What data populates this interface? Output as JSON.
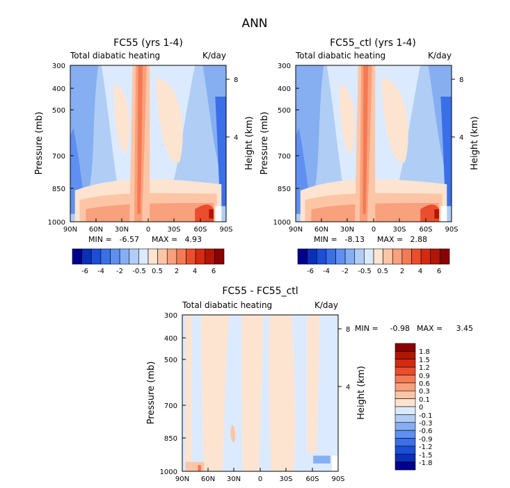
{
  "figure": {
    "title": "ANN"
  },
  "chart_data": [
    {
      "type": "heatmap",
      "title": "FC55 (yrs 1-4)",
      "subtitle_left": "Total diabatic heating",
      "subtitle_right": "K/day",
      "ylabel": "Pressure (mb)",
      "ylabel_right": "Height (km)",
      "xticks": [
        "90N",
        "60N",
        "30N",
        "0",
        "30S",
        "60S",
        "90S"
      ],
      "yticks": [
        "300",
        "400",
        "500",
        "700",
        "850",
        "1000"
      ],
      "yticks_right": [
        "8",
        "4"
      ],
      "ylim": [
        1000,
        300
      ],
      "y_scale": "log-pressure",
      "min_label": "MIN =",
      "min_value": "-6.57",
      "max_label": "MAX =",
      "max_value": "4.93",
      "colorbar": {
        "orientation": "horizontal",
        "labels": [
          "-6",
          "-4",
          "-2",
          "-0.5",
          "0.5",
          "2",
          "4",
          "6"
        ],
        "colors": [
          "#00008f",
          "#0a2fb8",
          "#1a4fd6",
          "#3a6fe8",
          "#5f8ff0",
          "#86aff2",
          "#b0cdf5",
          "#dceaff",
          "#fde4d0",
          "#fcc6a6",
          "#f9a07c",
          "#f47a54",
          "#ea4e2e",
          "#d52a12",
          "#b01606",
          "#8b0000"
        ]
      }
    },
    {
      "type": "heatmap",
      "title": "FC55_ctl (yrs 1-4)",
      "subtitle_left": "Total diabatic heating",
      "subtitle_right": "K/day",
      "ylabel": "Pressure (mb)",
      "ylabel_right": "Height (km)",
      "xticks": [
        "90N",
        "60N",
        "30N",
        "0",
        "30S",
        "60S",
        "90S"
      ],
      "yticks": [
        "300",
        "400",
        "500",
        "700",
        "850",
        "1000"
      ],
      "yticks_right": [
        "8",
        "4"
      ],
      "ylim": [
        1000,
        300
      ],
      "y_scale": "log-pressure",
      "min_label": "MIN =",
      "min_value": "-8.13",
      "max_label": "MAX =",
      "max_value": "2.88",
      "colorbar": {
        "orientation": "horizontal",
        "labels": [
          "-6",
          "-4",
          "-2",
          "-0.5",
          "0.5",
          "2",
          "4",
          "6"
        ],
        "colors": [
          "#00008f",
          "#0a2fb8",
          "#1a4fd6",
          "#3a6fe8",
          "#5f8ff0",
          "#86aff2",
          "#b0cdf5",
          "#dceaff",
          "#fde4d0",
          "#fcc6a6",
          "#f9a07c",
          "#f47a54",
          "#ea4e2e",
          "#d52a12",
          "#b01606",
          "#8b0000"
        ]
      }
    },
    {
      "type": "heatmap",
      "title": "FC55 - FC55_ctl",
      "subtitle_left": "Total diabatic heating",
      "subtitle_right": "K/day",
      "ylabel": "Pressure (mb)",
      "ylabel_right": "Height (km)",
      "xticks": [
        "90N",
        "60N",
        "30N",
        "0",
        "30S",
        "60S",
        "90S"
      ],
      "yticks": [
        "300",
        "400",
        "500",
        "700",
        "850",
        "1000"
      ],
      "yticks_right": [
        "8",
        "4"
      ],
      "ylim": [
        1000,
        300
      ],
      "y_scale": "log-pressure",
      "min_label": "MIN =",
      "min_value": "-0.98",
      "max_label": "MAX =",
      "max_value": "3.45",
      "colorbar": {
        "orientation": "vertical",
        "labels": [
          "1.8",
          "1.5",
          "1.2",
          "0.9",
          "0.6",
          "0.3",
          "0.1",
          "0",
          "-0.1",
          "-0.3",
          "-0.6",
          "-0.9",
          "-1.2",
          "-1.5",
          "-1.8"
        ],
        "colors": [
          "#8b0000",
          "#b01606",
          "#d52a12",
          "#ea4e2e",
          "#f47a54",
          "#f9a07c",
          "#fcc6a6",
          "#fde4d0",
          "#dceaff",
          "#b0cdf5",
          "#86aff2",
          "#5f8ff0",
          "#3a6fe8",
          "#1a4fd6",
          "#0a2fb8",
          "#00008f"
        ]
      }
    }
  ]
}
